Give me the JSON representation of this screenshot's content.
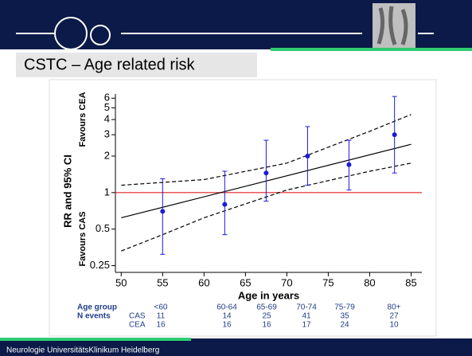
{
  "slide_title": "CSTC – Age related risk",
  "footer": "Neurologie UniversitätsKlinikum Heidelberg",
  "chart_data": {
    "type": "errorbar",
    "ylabel": "RR and 95% CI",
    "annotations": [
      "Favours CEA",
      "Favours CAS"
    ],
    "xlabel": "Age in years",
    "xlim": [
      49.3,
      86.3
    ],
    "xticks": [
      50,
      55,
      60,
      65,
      70,
      75,
      80,
      85
    ],
    "ylim": [
      0.22,
      6.5
    ],
    "yscale": "log",
    "yticks": [
      0.25,
      0.5,
      1,
      2,
      3,
      4,
      5,
      6
    ],
    "points": {
      "color": "#1a1adb",
      "x": [
        55,
        62.5,
        67.5,
        72.5,
        77.5,
        83
      ],
      "values": [
        0.7,
        0.8,
        1.45,
        2.0,
        1.7,
        3.0
      ],
      "lower": [
        0.31,
        0.45,
        0.85,
        1.15,
        1.05,
        1.45
      ],
      "upper": [
        1.3,
        1.5,
        2.7,
        3.5,
        2.7,
        6.2
      ]
    },
    "fit": {
      "color": "#000000",
      "x": [
        50,
        85
      ],
      "values": [
        0.62,
        2.5
      ]
    },
    "ci_upper": {
      "color": "#000000",
      "x": [
        50,
        60,
        70,
        80,
        85
      ],
      "values": [
        1.15,
        1.28,
        1.75,
        3.2,
        4.4
      ]
    },
    "ci_lower": {
      "color": "#000000",
      "x": [
        50,
        55,
        60,
        70,
        80,
        85
      ],
      "values": [
        0.33,
        0.45,
        0.62,
        1.05,
        1.5,
        1.75
      ]
    },
    "reference_line": {
      "value": 1,
      "color": "#e02020"
    },
    "table": {
      "header": "Age group",
      "row_label": "N events",
      "groups": [
        "<60",
        "60-64",
        "65-69",
        "70-74",
        "75-79",
        "80+"
      ],
      "rows": [
        {
          "label": "CAS",
          "values": [
            11,
            14,
            25,
            41,
            35,
            27
          ]
        },
        {
          "label": "CEA",
          "values": [
            16,
            16,
            16,
            17,
            24,
            10
          ]
        }
      ]
    }
  }
}
